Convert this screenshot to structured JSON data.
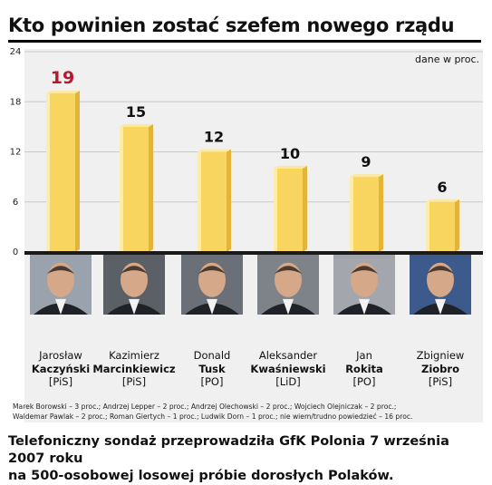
{
  "title": "Kto powinien zostać szefem nowego rządu",
  "unit_note": "dane w proc.",
  "highlight_color": "#b5192d",
  "bar_color": "#f7d55e",
  "chart_data": {
    "type": "bar",
    "title": "Kto powinien zostać szefem nowego rządu",
    "ylabel": "dane w proc.",
    "ylim": [
      0,
      24
    ],
    "yticks": [
      0,
      6,
      12,
      18,
      24
    ],
    "grid": true,
    "categories": [
      "Jarosław Kaczyński",
      "Kazimierz Marcinkiewicz",
      "Donald Tusk",
      "Aleksander Kwaśniewski",
      "Jan Rokita",
      "Zbigniew Ziobro"
    ],
    "values": [
      19,
      15,
      12,
      10,
      9,
      6
    ],
    "value_labels": [
      "19",
      "15",
      "12",
      "10",
      "9",
      "6"
    ],
    "ytick_labels": [
      "0",
      "6",
      "12",
      "18",
      "24"
    ]
  },
  "candidates": [
    {
      "first": "Jarosław",
      "last": "Kaczyński",
      "party": "[PiS]"
    },
    {
      "first": "Kazimierz",
      "last": "Marcinkiewicz",
      "party": "[PiS]"
    },
    {
      "first": "Donald",
      "last": "Tusk",
      "party": "[PO]"
    },
    {
      "first": "Aleksander",
      "last": "Kwaśniewski",
      "party": "[LiD]"
    },
    {
      "first": "Jan",
      "last": "Rokita",
      "party": "[PO]"
    },
    {
      "first": "Zbigniew",
      "last": "Ziobro",
      "party": "[PiS]"
    }
  ],
  "others_line1": "Marek Borowski – 3 proc.; Andrzej Lepper – 2 proc.; Andrzej Olechowski – 2 proc.; Wojciech Olejniczak – 2 proc.;",
  "others_line2": "Waldemar Pawlak – 2 proc.; Roman Giertych – 1 proc.; Ludwik Dorn – 1 proc.; nie wiem/trudno powiedzieć – 16 proc.",
  "source_line1": "Telefoniczny sondaż przeprowadziła GfK Polonia 7 września 2007 roku",
  "source_line2": "na 500-osobowej losowej próbie dorosłych Polaków."
}
